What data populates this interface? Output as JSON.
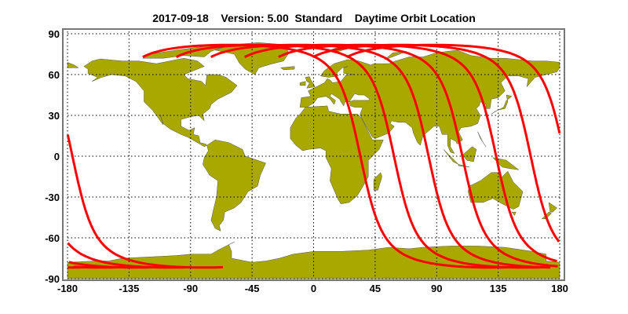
{
  "chart_data": {
    "type": "map",
    "title": "2017-09-18    Version: 5.00  Standard    Daytime Orbit Location",
    "projection": "equirectangular",
    "xlim": [
      -180,
      180
    ],
    "ylim": [
      -90,
      90
    ],
    "xticks": [
      "-180",
      "-135",
      "-90",
      "-45",
      "0",
      "45",
      "90",
      "135",
      "180"
    ],
    "yticks": [
      "90",
      "60",
      "30",
      "0",
      "-30",
      "-60",
      "-90"
    ],
    "grid": true,
    "grid_style": "dotted",
    "colors": {
      "land": "#a8a800",
      "orbit": "#ff0000",
      "frame": "#777777"
    },
    "orbit_tracks": {
      "pass": "daytime",
      "equator_crossing_lon": [
        34.2,
        58.8,
        84.1,
        108.8,
        133.5,
        158.8,
        183.6
      ]
    }
  }
}
